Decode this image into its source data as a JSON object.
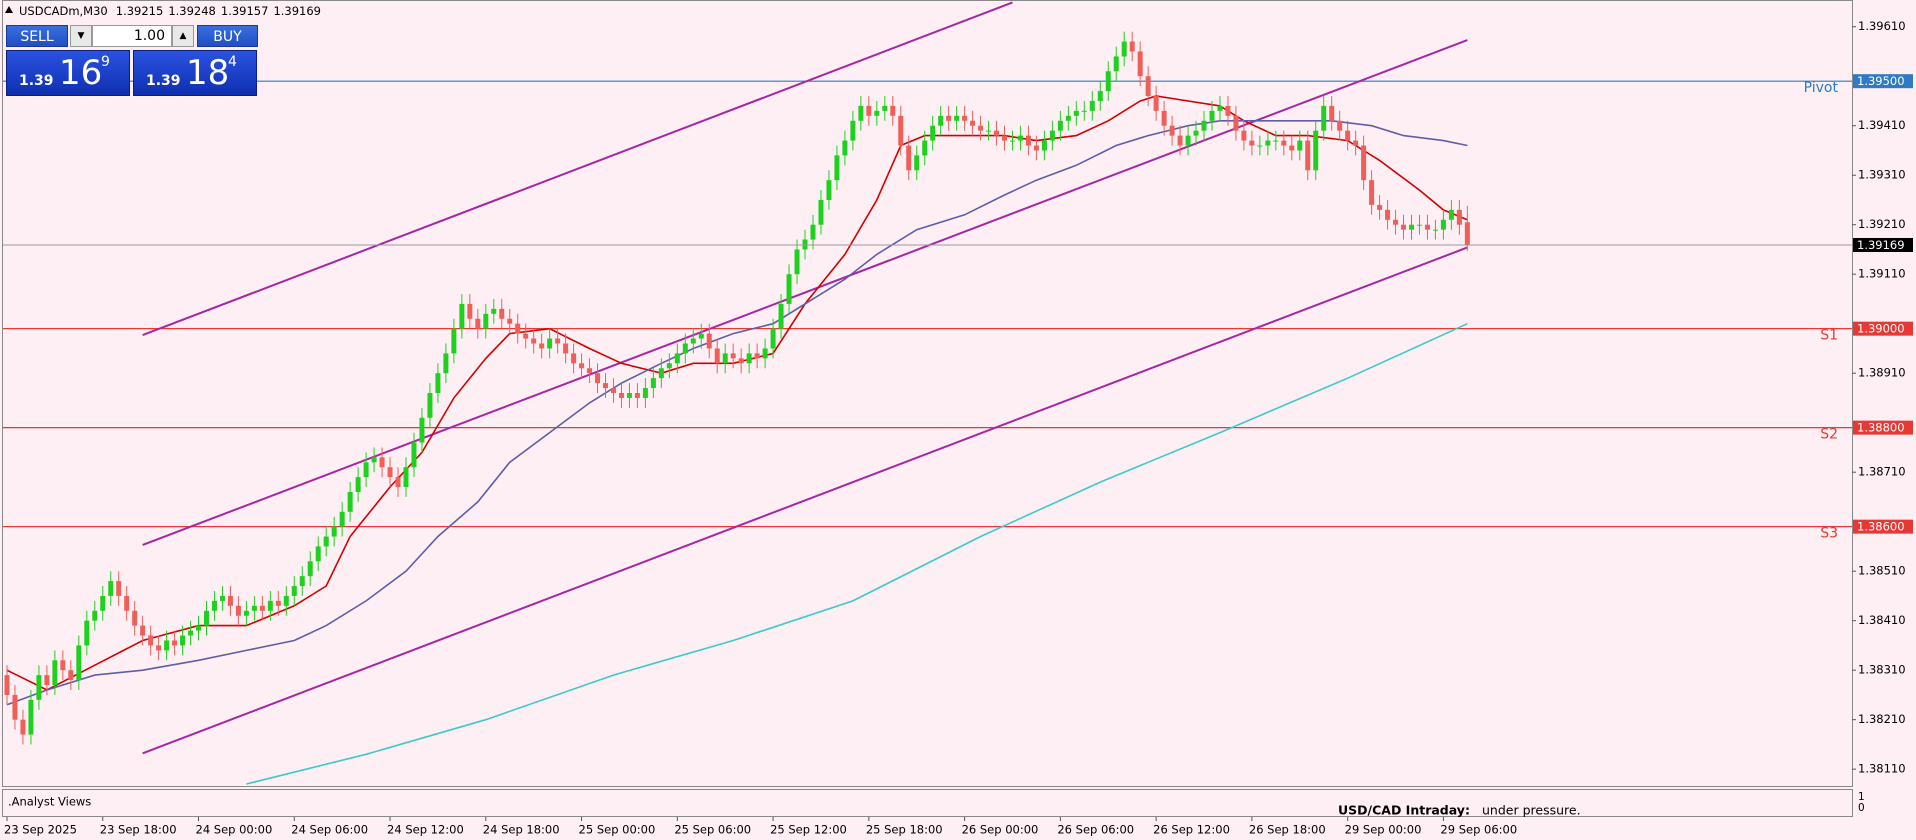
{
  "chart_data": {
    "type": "candlestick",
    "title": "USDCADm,M30",
    "open": [
      1.383,
      1.3826,
      1.3821,
      1.3818,
      1.3825,
      1.383,
      1.3828,
      1.3833,
      1.3831,
      1.3829,
      1.3836,
      1.3841,
      1.3843,
      1.3846,
      1.3849,
      1.3846,
      1.3843,
      1.384,
      1.3838,
      1.3836,
      1.3835,
      1.3837,
      1.3836,
      1.3838,
      1.3839,
      1.384,
      1.3843,
      1.3845,
      1.3846,
      1.3844,
      1.3842,
      1.3843,
      1.3844,
      1.3843,
      1.3845,
      1.3844,
      1.3846,
      1.3848,
      1.385,
      1.3853,
      1.3856,
      1.3858,
      1.386,
      1.3863,
      1.3867,
      1.387,
      1.3873,
      1.3874,
      1.3872,
      1.387,
      1.3868,
      1.3872,
      1.3877,
      1.3882,
      1.3887,
      1.3891,
      1.3895,
      1.39,
      1.3905,
      1.3902,
      1.39,
      1.3903,
      1.3904,
      1.3902,
      1.3901,
      1.3899,
      1.3898,
      1.3897,
      1.3896,
      1.3898,
      1.3897,
      1.3895,
      1.3893,
      1.3892,
      1.3891,
      1.3889,
      1.3888,
      1.3887,
      1.3886,
      1.3887,
      1.3886,
      1.3888,
      1.389,
      1.3892,
      1.3893,
      1.3895,
      1.3897,
      1.3898,
      1.3899,
      1.3896,
      1.3893,
      1.3895,
      1.3894,
      1.3893,
      1.3895,
      1.3894,
      1.3896,
      1.39,
      1.3905,
      1.3911,
      1.3916,
      1.3918,
      1.3921,
      1.3926,
      1.393,
      1.3935,
      1.3938,
      1.3942,
      1.3945,
      1.3943,
      1.3944,
      1.3945,
      1.3943,
      1.3937,
      1.3932,
      1.3935,
      1.3938,
      1.3941,
      1.3943,
      1.3942,
      1.3943,
      1.3942,
      1.3941,
      1.394,
      1.394,
      1.3939,
      1.3938,
      1.3938,
      1.3939,
      1.3937,
      1.3936,
      1.3938,
      1.394,
      1.3942,
      1.3943,
      1.3944,
      1.3944,
      1.3946,
      1.3948,
      1.3952,
      1.3955,
      1.3958,
      1.3956,
      1.3951,
      1.3947,
      1.3944,
      1.3941,
      1.3939,
      1.3937,
      1.3939,
      1.394,
      1.3942,
      1.3944,
      1.3945,
      1.3943,
      1.394,
      1.3938,
      1.3937,
      1.3937,
      1.3938,
      1.3938,
      1.3937,
      1.3936,
      1.3938,
      1.3932,
      1.394,
      1.3945,
      1.3942,
      1.394,
      1.3938,
      1.3937,
      1.393,
      1.3925,
      1.3924,
      1.3922,
      1.3921,
      1.392,
      1.3921,
      1.3921,
      1.392,
      1.392,
      1.3922,
      1.3924,
      1.39215
    ],
    "high": [
      1.3832,
      1.3828,
      1.3823,
      1.3827,
      1.3832,
      1.3832,
      1.3835,
      1.3835,
      1.3833,
      1.3838,
      1.3843,
      1.3845,
      1.3848,
      1.3851,
      1.3851,
      1.3848,
      1.3845,
      1.3842,
      1.384,
      1.3838,
      1.3839,
      1.3839,
      1.384,
      1.3841,
      1.3842,
      1.3845,
      1.3847,
      1.3848,
      1.3848,
      1.3846,
      1.3845,
      1.3846,
      1.3846,
      1.3847,
      1.3847,
      1.3848,
      1.385,
      1.3852,
      1.3855,
      1.3858,
      1.386,
      1.3862,
      1.3865,
      1.3869,
      1.3872,
      1.3875,
      1.3876,
      1.3876,
      1.3874,
      1.3872,
      1.3874,
      1.3879,
      1.3884,
      1.3889,
      1.3893,
      1.3897,
      1.3902,
      1.3907,
      1.3907,
      1.3904,
      1.3905,
      1.3906,
      1.3906,
      1.3904,
      1.3903,
      1.3901,
      1.39,
      1.3899,
      1.39,
      1.39,
      1.3899,
      1.3897,
      1.3895,
      1.3894,
      1.3893,
      1.3891,
      1.389,
      1.3889,
      1.3889,
      1.3889,
      1.389,
      1.3892,
      1.3894,
      1.3895,
      1.3897,
      1.3899,
      1.39,
      1.3901,
      1.3901,
      1.3898,
      1.3897,
      1.3897,
      1.3896,
      1.3897,
      1.3897,
      1.3898,
      1.3902,
      1.3907,
      1.3913,
      1.3918,
      1.392,
      1.3923,
      1.3928,
      1.3932,
      1.3937,
      1.394,
      1.3944,
      1.3947,
      1.3947,
      1.3946,
      1.3947,
      1.3947,
      1.3945,
      1.3939,
      1.3937,
      1.394,
      1.3943,
      1.3945,
      1.3945,
      1.3945,
      1.3945,
      1.3944,
      1.3943,
      1.3942,
      1.3942,
      1.3941,
      1.394,
      1.3941,
      1.3941,
      1.3939,
      1.394,
      1.3942,
      1.3944,
      1.3945,
      1.3946,
      1.3946,
      1.3948,
      1.395,
      1.3954,
      1.3957,
      1.396,
      1.396,
      1.3958,
      1.3953,
      1.3949,
      1.3946,
      1.3943,
      1.3941,
      1.3941,
      1.3942,
      1.3944,
      1.3946,
      1.3947,
      1.3947,
      1.3945,
      1.3942,
      1.394,
      1.3939,
      1.394,
      1.394,
      1.394,
      1.3939,
      1.394,
      1.394,
      1.3942,
      1.3947,
      1.3947,
      1.3944,
      1.3942,
      1.394,
      1.3939,
      1.3932,
      1.3927,
      1.3926,
      1.3924,
      1.3923,
      1.3923,
      1.3923,
      1.3923,
      1.3922,
      1.3924,
      1.3926,
      1.3926,
      1.39248
    ],
    "low": [
      1.3824,
      1.3819,
      1.3816,
      1.3816,
      1.3823,
      1.3826,
      1.3826,
      1.3829,
      1.3827,
      1.3827,
      1.3834,
      1.3839,
      1.3841,
      1.3844,
      1.3844,
      1.3841,
      1.3838,
      1.3836,
      1.3834,
      1.3833,
      1.3833,
      1.3834,
      1.3834,
      1.3836,
      1.3837,
      1.3838,
      1.3841,
      1.3843,
      1.3842,
      1.384,
      1.384,
      1.3841,
      1.3841,
      1.3841,
      1.3842,
      1.3842,
      1.3844,
      1.3846,
      1.3848,
      1.3851,
      1.3854,
      1.3856,
      1.3858,
      1.3861,
      1.3865,
      1.3868,
      1.3871,
      1.387,
      1.3868,
      1.3866,
      1.3866,
      1.387,
      1.3875,
      1.388,
      1.3885,
      1.3889,
      1.3893,
      1.3898,
      1.39,
      1.3898,
      1.3898,
      1.3901,
      1.39,
      1.3899,
      1.3897,
      1.3896,
      1.3895,
      1.3894,
      1.3894,
      1.3895,
      1.3893,
      1.3891,
      1.389,
      1.3889,
      1.3887,
      1.3886,
      1.3885,
      1.3884,
      1.3884,
      1.3884,
      1.3884,
      1.3886,
      1.3888,
      1.389,
      1.3891,
      1.3893,
      1.3895,
      1.3896,
      1.3894,
      1.3891,
      1.3891,
      1.3892,
      1.3891,
      1.3891,
      1.3892,
      1.3892,
      1.3894,
      1.3898,
      1.3903,
      1.3909,
      1.3914,
      1.3916,
      1.3919,
      1.3924,
      1.3928,
      1.3933,
      1.3936,
      1.394,
      1.3941,
      1.3941,
      1.3942,
      1.3941,
      1.3935,
      1.393,
      1.393,
      1.3933,
      1.3936,
      1.3939,
      1.394,
      1.394,
      1.394,
      1.3939,
      1.3938,
      1.3938,
      1.3937,
      1.3936,
      1.3936,
      1.3936,
      1.3935,
      1.3934,
      1.3934,
      1.3936,
      1.3938,
      1.394,
      1.3941,
      1.3942,
      1.3942,
      1.3944,
      1.3946,
      1.395,
      1.3953,
      1.3954,
      1.3949,
      1.3945,
      1.3942,
      1.3939,
      1.3937,
      1.3935,
      1.3935,
      1.3937,
      1.3938,
      1.394,
      1.3942,
      1.3941,
      1.3938,
      1.3936,
      1.3935,
      1.3935,
      1.3935,
      1.3936,
      1.3935,
      1.3934,
      1.3934,
      1.393,
      1.393,
      1.3938,
      1.394,
      1.3938,
      1.3936,
      1.3935,
      1.3928,
      1.3923,
      1.3922,
      1.392,
      1.3919,
      1.3918,
      1.3918,
      1.3919,
      1.3918,
      1.3918,
      1.3918,
      1.392,
      1.3919,
      1.39157
    ],
    "close": [
      1.3826,
      1.3821,
      1.3818,
      1.3825,
      1.383,
      1.3828,
      1.3833,
      1.3831,
      1.3829,
      1.3836,
      1.3841,
      1.3843,
      1.3846,
      1.3849,
      1.3846,
      1.3843,
      1.384,
      1.3838,
      1.3836,
      1.3835,
      1.3837,
      1.3836,
      1.3838,
      1.3839,
      1.384,
      1.3843,
      1.3845,
      1.3846,
      1.3844,
      1.3842,
      1.3843,
      1.3844,
      1.3843,
      1.3845,
      1.3844,
      1.3846,
      1.3848,
      1.385,
      1.3853,
      1.3856,
      1.3858,
      1.386,
      1.3863,
      1.3867,
      1.387,
      1.3873,
      1.3874,
      1.3872,
      1.387,
      1.3868,
      1.3872,
      1.3877,
      1.3882,
      1.3887,
      1.3891,
      1.3895,
      1.39,
      1.3905,
      1.3902,
      1.39,
      1.3903,
      1.3904,
      1.3902,
      1.3901,
      1.3899,
      1.3898,
      1.3897,
      1.3896,
      1.3898,
      1.3897,
      1.3895,
      1.3893,
      1.3892,
      1.3891,
      1.3889,
      1.3888,
      1.3887,
      1.3886,
      1.3887,
      1.3886,
      1.3888,
      1.389,
      1.3892,
      1.3893,
      1.3895,
      1.3897,
      1.3898,
      1.3899,
      1.3896,
      1.3893,
      1.3895,
      1.3894,
      1.3893,
      1.3895,
      1.3894,
      1.3896,
      1.39,
      1.3905,
      1.3911,
      1.3916,
      1.3918,
      1.3921,
      1.3926,
      1.393,
      1.3935,
      1.3938,
      1.3942,
      1.3945,
      1.3943,
      1.3944,
      1.3945,
      1.3943,
      1.3937,
      1.3932,
      1.3935,
      1.3938,
      1.3941,
      1.3943,
      1.3942,
      1.3943,
      1.3942,
      1.3941,
      1.394,
      1.394,
      1.3939,
      1.3938,
      1.3938,
      1.3939,
      1.3937,
      1.3936,
      1.3938,
      1.394,
      1.3942,
      1.3943,
      1.3944,
      1.3944,
      1.3946,
      1.3948,
      1.3952,
      1.3955,
      1.3958,
      1.3956,
      1.3951,
      1.3947,
      1.3944,
      1.3941,
      1.3939,
      1.3937,
      1.3939,
      1.394,
      1.3942,
      1.3944,
      1.3945,
      1.3943,
      1.394,
      1.3938,
      1.3937,
      1.3937,
      1.3938,
      1.3938,
      1.3937,
      1.3936,
      1.3938,
      1.3932,
      1.394,
      1.3945,
      1.3942,
      1.394,
      1.3938,
      1.3937,
      1.393,
      1.3925,
      1.3924,
      1.3922,
      1.3921,
      1.392,
      1.3921,
      1.3921,
      1.392,
      1.392,
      1.3922,
      1.3924,
      1.3921,
      1.39169
    ],
    "up_color": "#1fd11f",
    "down_color": "#ef5f5a",
    "xlim": [
      -0.5,
      231.2
    ],
    "xticks": [
      {
        "value": 0,
        "label": "23 Sep 2025"
      },
      {
        "value": 12,
        "label": "23 Sep 18:00"
      },
      {
        "value": 24,
        "label": "24 Sep 00:00"
      },
      {
        "value": 36,
        "label": "24 Sep 06:00"
      },
      {
        "value": 48,
        "label": "24 Sep 12:00"
      },
      {
        "value": 60,
        "label": "24 Sep 18:00"
      },
      {
        "value": 72,
        "label": "25 Sep 00:00"
      },
      {
        "value": 84,
        "label": "25 Sep 06:00"
      },
      {
        "value": 96,
        "label": "25 Sep 12:00"
      },
      {
        "value": 108,
        "label": "25 Sep 18:00"
      },
      {
        "value": 120,
        "label": "26 Sep 00:00"
      },
      {
        "value": 132,
        "label": "26 Sep 06:00"
      },
      {
        "value": 144,
        "label": "26 Sep 12:00"
      },
      {
        "value": 156,
        "label": "26 Sep 18:00"
      },
      {
        "value": 168,
        "label": "29 Sep 00:00"
      },
      {
        "value": 180,
        "label": "29 Sep 06:00"
      }
    ],
    "ylim": [
      1.38076,
      1.39664
    ],
    "yticks": [
      {
        "value": 1.3961,
        "label": "1.39610"
      },
      {
        "value": 1.3941,
        "label": "1.39410"
      },
      {
        "value": 1.3931,
        "label": "1.39310"
      },
      {
        "value": 1.3921,
        "label": "1.39210"
      },
      {
        "value": 1.3911,
        "label": "1.39110"
      },
      {
        "value": 1.3891,
        "label": "1.38910"
      },
      {
        "value": 1.3871,
        "label": "1.38710"
      },
      {
        "value": 1.3851,
        "label": "1.38510"
      },
      {
        "value": 1.3841,
        "label": "1.38410"
      },
      {
        "value": 1.3831,
        "label": "1.38310"
      },
      {
        "value": 1.3821,
        "label": "1.38210"
      },
      {
        "value": 1.3811,
        "label": "1.38110"
      }
    ],
    "moving_averages": [
      {
        "color": "#d40000",
        "x": [
          0,
          5,
          11,
          17,
          24,
          30,
          36,
          40,
          43,
          48,
          52,
          56,
          60,
          63,
          68,
          73,
          77,
          82,
          86,
          91,
          96,
          100,
          105,
          109,
          112,
          115,
          120,
          125,
          129,
          134,
          138,
          142,
          144,
          148,
          152,
          155,
          159,
          163,
          168,
          172,
          177,
          180,
          183
        ],
        "values": [
          1.3831,
          1.3827,
          1.3832,
          1.3837,
          1.384,
          1.384,
          1.3844,
          1.3848,
          1.3858,
          1.3868,
          1.3875,
          1.3886,
          1.3894,
          1.3899,
          1.39,
          1.3896,
          1.3893,
          1.3891,
          1.3893,
          1.3893,
          1.3895,
          1.3905,
          1.3915,
          1.3926,
          1.3937,
          1.3939,
          1.3939,
          1.3939,
          1.3938,
          1.3939,
          1.3942,
          1.3946,
          1.3947,
          1.3946,
          1.3945,
          1.3942,
          1.3939,
          1.3939,
          1.3938,
          1.3934,
          1.3928,
          1.3924,
          1.3922
        ]
      },
      {
        "color": "#5e5ea8",
        "x": [
          0,
          5,
          11,
          17,
          24,
          30,
          36,
          40,
          45,
          50,
          54,
          59,
          63,
          68,
          73,
          77,
          82,
          86,
          91,
          96,
          100,
          105,
          109,
          114,
          120,
          125,
          129,
          134,
          139,
          143,
          148,
          152,
          157,
          162,
          166,
          171,
          175,
          180,
          183
        ],
        "values": [
          1.3824,
          1.3827,
          1.383,
          1.3831,
          1.3833,
          1.3835,
          1.3837,
          1.384,
          1.3845,
          1.3851,
          1.3858,
          1.3865,
          1.3873,
          1.3879,
          1.3885,
          1.3889,
          1.3893,
          1.3896,
          1.3899,
          1.3901,
          1.3905,
          1.391,
          1.3915,
          1.392,
          1.3923,
          1.3927,
          1.393,
          1.3933,
          1.3937,
          1.3939,
          1.3941,
          1.3942,
          1.3942,
          1.3942,
          1.3942,
          1.3941,
          1.3939,
          1.3938,
          1.3937
        ]
      },
      {
        "color": "#3fc9c9",
        "x": [
          30,
          45,
          60,
          76,
          91,
          106,
          122,
          137,
          152,
          168,
          183
        ],
        "values": [
          1.3808,
          1.3814,
          1.3821,
          1.383,
          1.3837,
          1.3845,
          1.3858,
          1.3869,
          1.3879,
          1.389,
          1.3901
        ]
      }
    ],
    "channels": {
      "color": "#a626a4",
      "lines": [
        {
          "x": [
            17,
            126
          ],
          "values": [
            1.38987,
            1.39659
          ]
        },
        {
          "x": [
            17,
            183
          ],
          "values": [
            1.38563,
            1.39583
          ]
        },
        {
          "x": [
            17,
            183
          ],
          "values": [
            1.38142,
            1.39164
          ]
        }
      ]
    },
    "levels": [
      {
        "name": "Pivot",
        "value": 1.395,
        "value_label": "1.39500",
        "color": "#2e7bc4"
      },
      {
        "name": "S1",
        "value": 1.39,
        "value_label": "1.39000",
        "color": "#e53935"
      },
      {
        "name": "S2",
        "value": 1.388,
        "value_label": "1.38800",
        "color": "#e53935"
      },
      {
        "name": "S3",
        "value": 1.386,
        "value_label": "1.38600",
        "color": "#e53935"
      }
    ],
    "indicator": {
      "title": ".Analyst Views",
      "ylim": [
        0,
        1
      ],
      "yticks": [
        0,
        1
      ],
      "heading": "USD/CAD Intraday:",
      "text": "under pressure."
    }
  },
  "trade_panel": {
    "sell": "SELL",
    "buy": "BUY",
    "lot": "1.00",
    "bid": {
      "big": "1.39",
      "pips": "16",
      "point": "9"
    },
    "ask": {
      "big": "1.39",
      "pips": "18",
      "point": "4"
    }
  }
}
